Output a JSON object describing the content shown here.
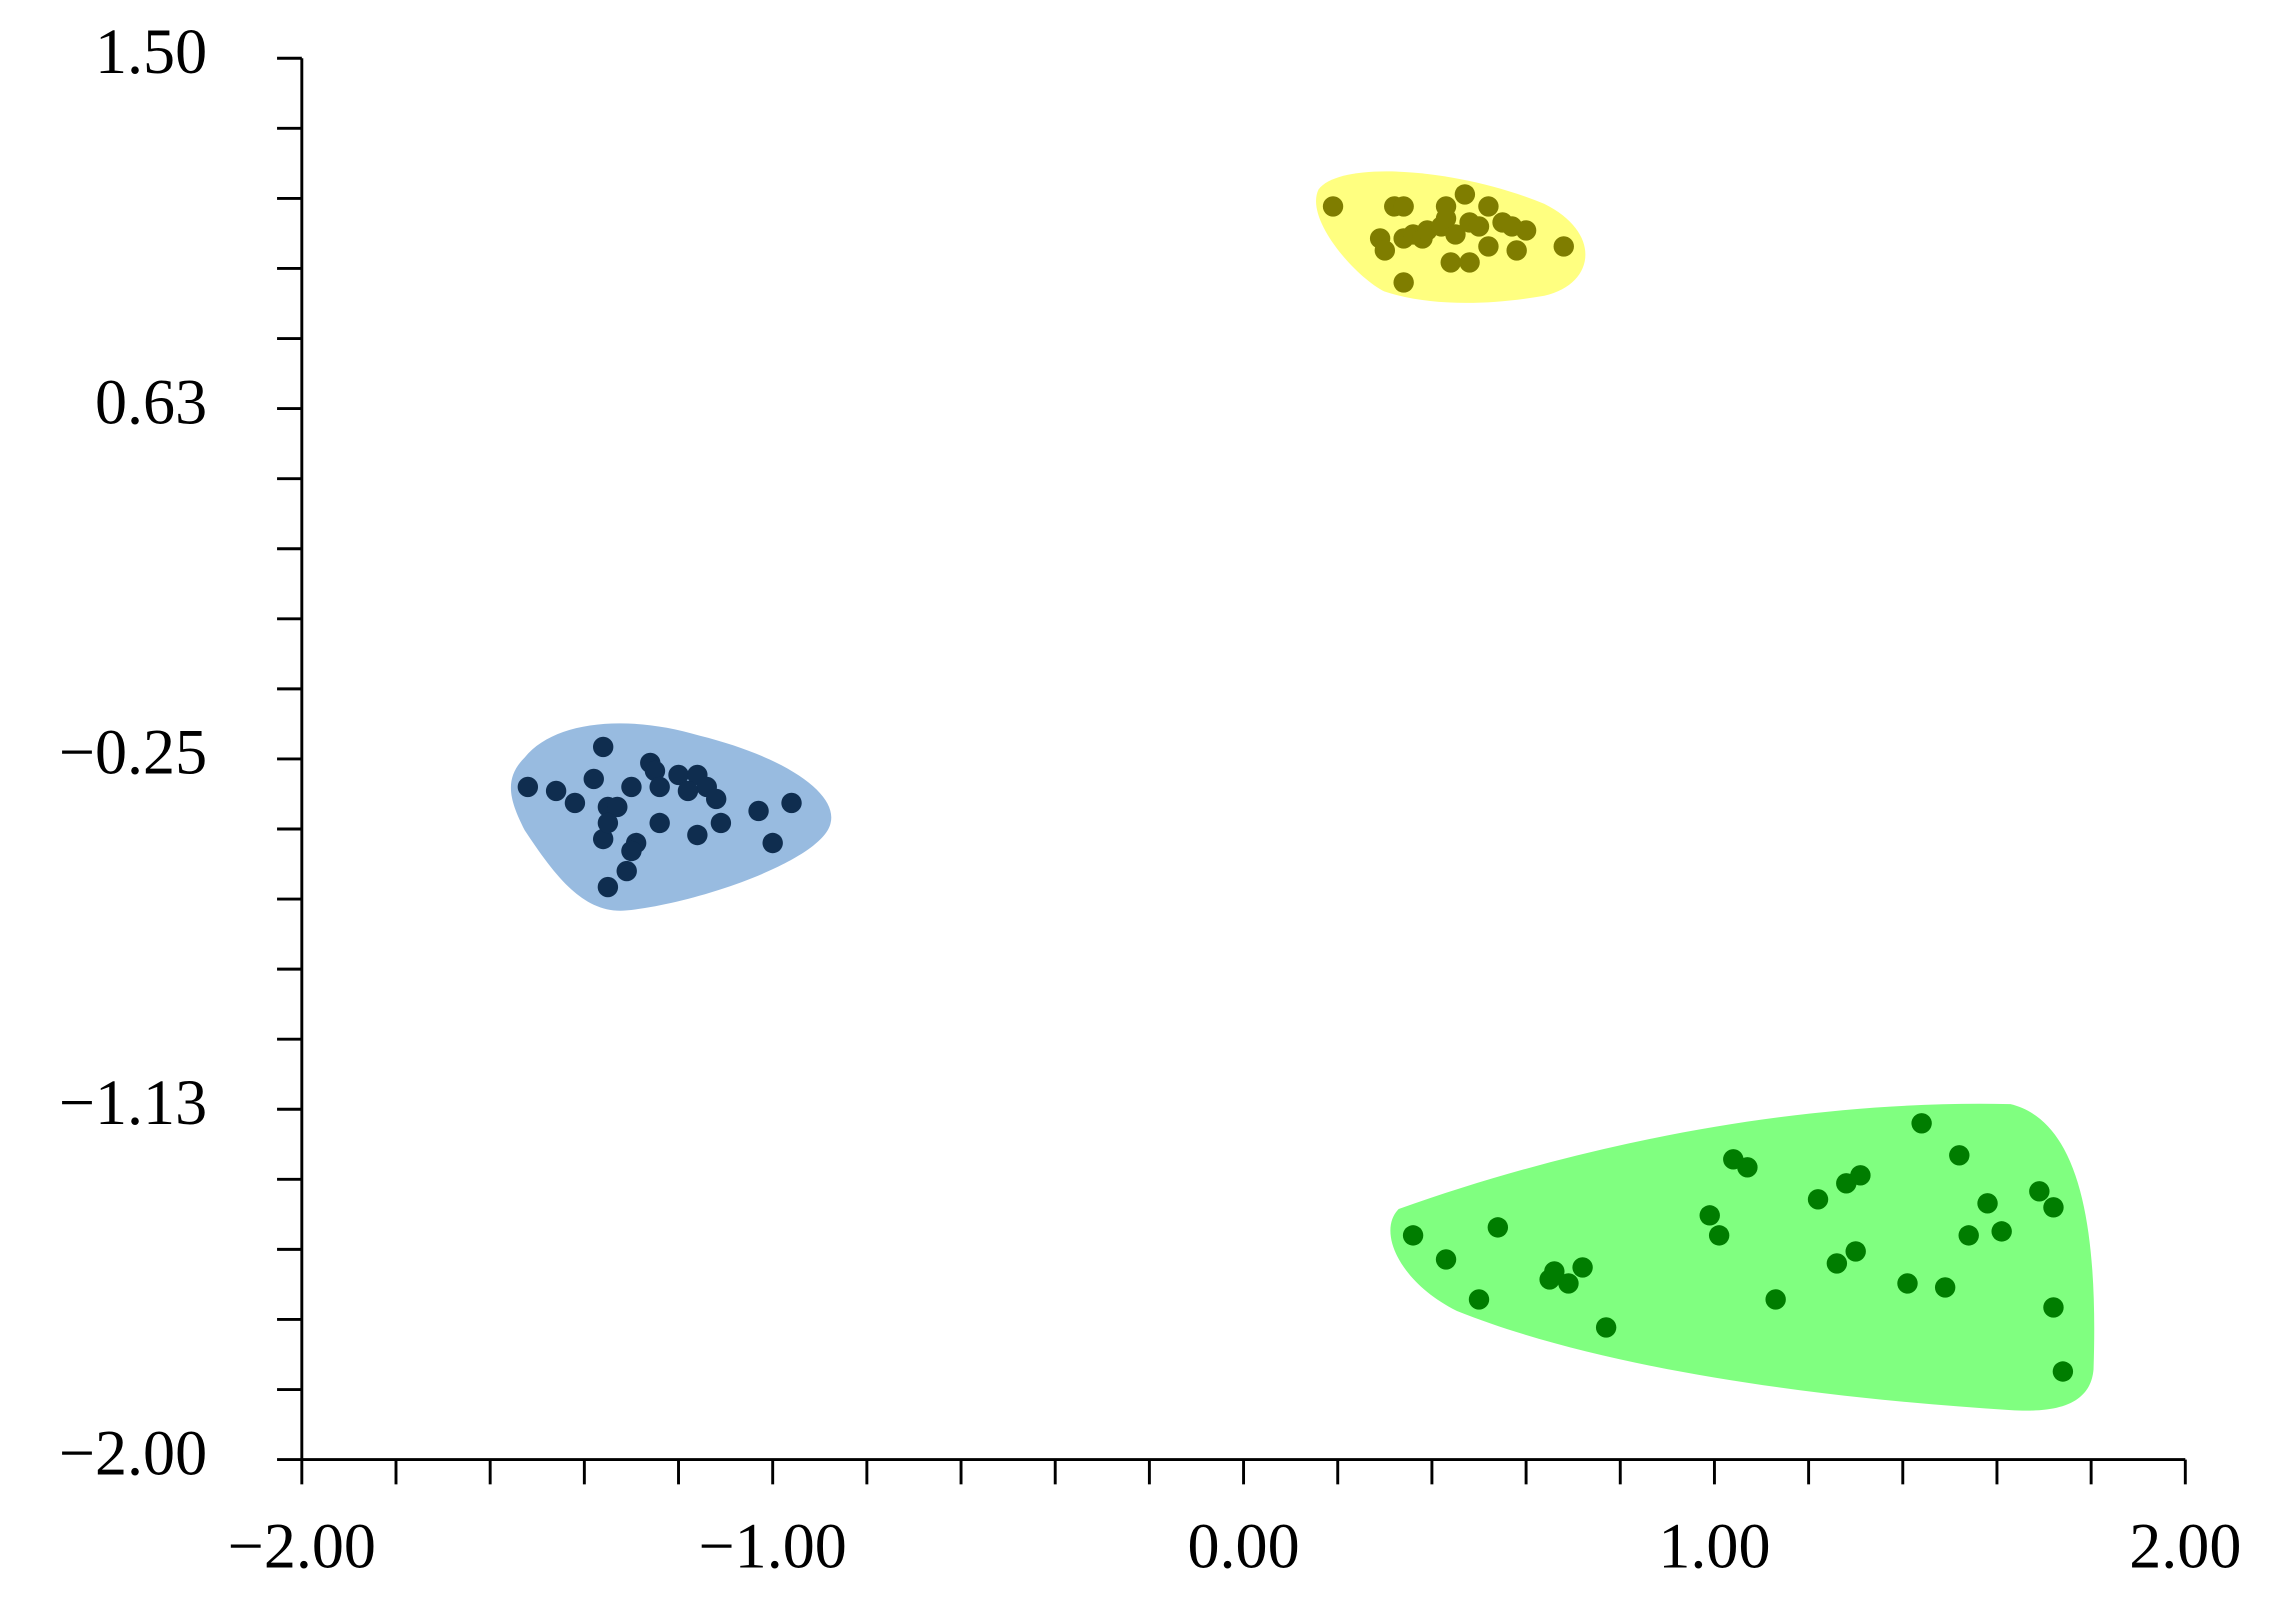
{
  "chart_data": {
    "type": "scatter",
    "xlim": [
      -2,
      2
    ],
    "ylim": [
      -2,
      1.5
    ],
    "xticks": [
      {
        "value": -2,
        "label": "−2.00"
      },
      {
        "value": -1,
        "label": "−1.00"
      },
      {
        "value": 0,
        "label": "0.00"
      },
      {
        "value": 1,
        "label": "1.00"
      },
      {
        "value": 2,
        "label": "2.00"
      }
    ],
    "yticks": [
      {
        "value": -2,
        "label": "−2.00"
      },
      {
        "value": -1.125,
        "label": "−1.13"
      },
      {
        "value": -0.25,
        "label": "−0.25"
      },
      {
        "value": 0.625,
        "label": "0.63"
      },
      {
        "value": 1.5,
        "label": "1.50"
      }
    ],
    "series": [
      {
        "color": "#7f7d00",
        "x": [
          0.19,
          0.32,
          0.34,
          0.43,
          0.47,
          0.52,
          0.29,
          0.3,
          0.34,
          0.36,
          0.38,
          0.39,
          0.42,
          0.43,
          0.45,
          0.48,
          0.5,
          0.55,
          0.57,
          0.6,
          0.52,
          0.58,
          0.68,
          0.44,
          0.48,
          0.34
        ],
        "values": [
          1.13,
          1.13,
          1.13,
          1.13,
          1.16,
          1.13,
          1.05,
          1.02,
          1.05,
          1.06,
          1.05,
          1.07,
          1.08,
          1.1,
          1.06,
          1.09,
          1.08,
          1.09,
          1.08,
          1.07,
          1.03,
          1.02,
          1.03,
          0.99,
          0.99,
          0.94
        ]
      },
      {
        "color": "#0f2d4f",
        "x": [
          -1.52,
          -1.46,
          -1.42,
          -1.38,
          -1.36,
          -1.35,
          -1.33,
          -1.3,
          -1.26,
          -1.25,
          -1.24,
          -1.2,
          -1.16,
          -1.14,
          -1.12,
          -1.11,
          -1.16,
          -1.24,
          -1.29,
          -1.3,
          -1.36,
          -1.35,
          -1.31,
          -1.35,
          -1.03,
          -1.0,
          -0.96,
          -1.18
        ],
        "values": [
          -0.32,
          -0.33,
          -0.36,
          -0.3,
          -0.22,
          -0.37,
          -0.37,
          -0.32,
          -0.26,
          -0.28,
          -0.32,
          -0.29,
          -0.29,
          -0.32,
          -0.35,
          -0.41,
          -0.44,
          -0.41,
          -0.46,
          -0.48,
          -0.45,
          -0.41,
          -0.53,
          -0.57,
          -0.38,
          -0.46,
          -0.36,
          -0.33
        ]
      },
      {
        "color": "#007d00",
        "x": [
          0.36,
          0.43,
          0.5,
          0.54,
          0.65,
          0.66,
          0.69,
          0.72,
          0.77,
          0.99,
          1.01,
          1.04,
          1.07,
          1.13,
          1.22,
          1.26,
          1.3,
          1.28,
          1.31,
          1.41,
          1.44,
          1.49,
          1.52,
          1.54,
          1.58,
          1.61,
          1.69,
          1.72,
          1.72,
          1.74
        ],
        "values": [
          -1.44,
          -1.5,
          -1.6,
          -1.42,
          -1.55,
          -1.53,
          -1.56,
          -1.52,
          -1.67,
          -1.39,
          -1.44,
          -1.25,
          -1.27,
          -1.6,
          -1.35,
          -1.51,
          -1.48,
          -1.31,
          -1.29,
          -1.56,
          -1.16,
          -1.57,
          -1.24,
          -1.44,
          -1.36,
          -1.43,
          -1.33,
          -1.37,
          -1.62,
          -1.78
        ]
      }
    ]
  }
}
